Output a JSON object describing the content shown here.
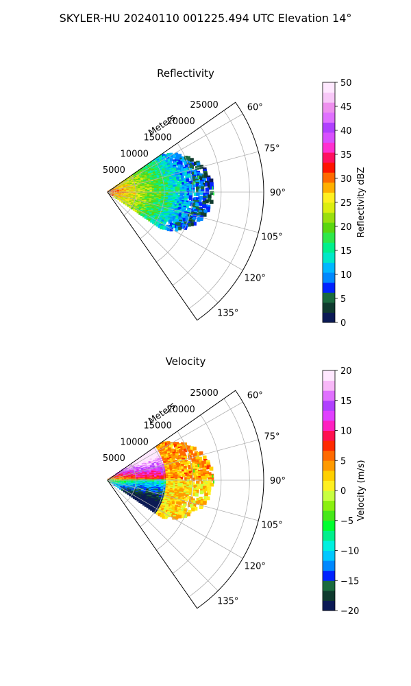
{
  "figure": {
    "title": "SKYLER-HU  20240110  001225.494 UTC Elevation 14°"
  },
  "chart_data": [
    {
      "type": "polar-sector-heatmap",
      "title": "Reflectivity",
      "radial_label": "Meters",
      "radial_ticks": [
        5000,
        10000,
        15000,
        20000,
        25000
      ],
      "radial_tick_labels": [
        "5000",
        "10000",
        "15000",
        "20000",
        "25000"
      ],
      "radial_range": [
        0,
        27500
      ],
      "azimuth_range_deg": [
        55,
        145
      ],
      "azimuth_ticks": [
        60,
        75,
        90,
        105,
        120,
        135
      ],
      "azimuth_tick_labels": [
        "60°",
        "75°",
        "90°",
        "105°",
        "120°",
        "135°"
      ],
      "data_extent": {
        "az_min": 56,
        "az_max": 124,
        "r_max_m": 19000
      },
      "colorbar": {
        "label": "Reflectivity dBZ",
        "range": [
          0,
          50
        ],
        "ticks": [
          0,
          5,
          10,
          15,
          20,
          25,
          30,
          35,
          40,
          45,
          50
        ],
        "tick_labels": [
          "0",
          "5",
          "10",
          "15",
          "20",
          "25",
          "30",
          "35",
          "40",
          "45",
          "50"
        ],
        "colors": [
          "#0b1a55",
          "#0f3a2e",
          "#1a6a3e",
          "#0022ff",
          "#0088ff",
          "#00b8ff",
          "#00e8c8",
          "#00f08c",
          "#2ee84a",
          "#5ad60f",
          "#9adf0e",
          "#dcee10",
          "#fff020",
          "#ffb000",
          "#ff6a00",
          "#ff1400",
          "#ff1060",
          "#ff30d0",
          "#d850ff",
          "#b040ff",
          "#e070ff",
          "#ee90ee",
          "#f8c8f8",
          "#ffe8ff"
        ]
      },
      "grid": true
    },
    {
      "type": "polar-sector-heatmap",
      "title": "Velocity",
      "radial_label": "Meters",
      "radial_ticks": [
        5000,
        10000,
        15000,
        20000,
        25000
      ],
      "radial_tick_labels": [
        "5000",
        "10000",
        "15000",
        "20000",
        "25000"
      ],
      "radial_range": [
        0,
        27500
      ],
      "azimuth_range_deg": [
        55,
        145
      ],
      "azimuth_ticks": [
        60,
        75,
        90,
        105,
        120,
        135
      ],
      "azimuth_tick_labels": [
        "60°",
        "75°",
        "90°",
        "105°",
        "120°",
        "135°"
      ],
      "data_extent": {
        "az_min": 56,
        "az_max": 124,
        "r_max_m": 19000
      },
      "colorbar": {
        "label": "Velocity (m/s)",
        "range": [
          -20,
          20
        ],
        "ticks": [
          -20,
          -15,
          -10,
          -5,
          0,
          5,
          10,
          15,
          20
        ],
        "tick_labels": [
          "−20",
          "−15",
          "−10",
          "−5",
          "0",
          "5",
          "10",
          "15",
          "20"
        ],
        "colors": [
          "#0b1a55",
          "#0f3a2e",
          "#1a6a3e",
          "#0022ff",
          "#0088ff",
          "#00c8ff",
          "#00f0e0",
          "#00f08c",
          "#00ff30",
          "#46e81a",
          "#8af010",
          "#c8ff40",
          "#fff020",
          "#ffd000",
          "#ff9a00",
          "#ff6a00",
          "#ff2a00",
          "#ff1050",
          "#ff20c0",
          "#e040ff",
          "#b040ff",
          "#e070ff",
          "#f8b8f8",
          "#ffe8ff"
        ]
      },
      "grid": true
    }
  ]
}
